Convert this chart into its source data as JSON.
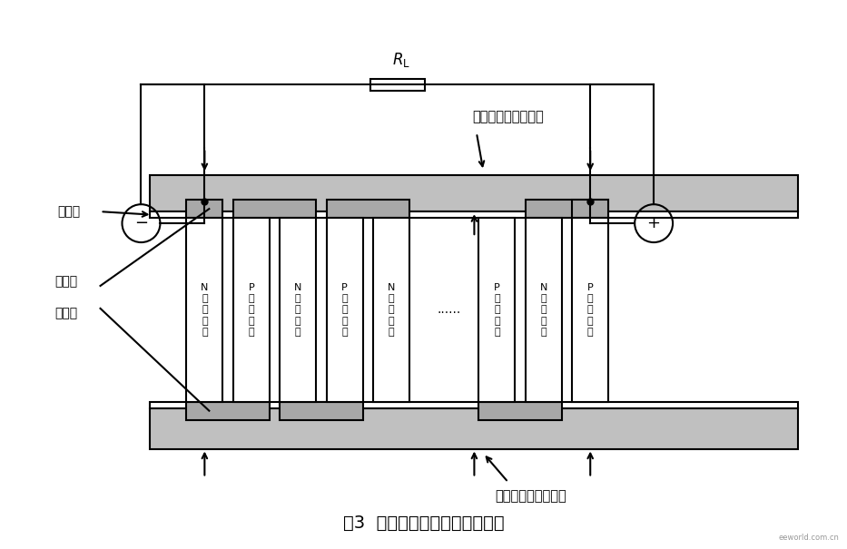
{
  "title": "图3  半导体温差电池原理示意图",
  "bg_color": "#ffffff",
  "line_color": "#000000",
  "top_plate_label": "环境接触层（冷端）",
  "bottom_plate_label": "人体接触层（热端）",
  "insulation_label": "绝缘层",
  "conductor_label1": "导电体",
  "conductor_label2": "绝缘体",
  "neg_label": "-",
  "pos_label": "+",
  "col_labels": [
    "N\n型\n半\n导\n体",
    "P\n型\n半\n导\n体",
    "N\n型\n半\n导\n体",
    "P\n型\n半\n导\n体",
    "N\n型\n半\n导\n体",
    "P\n型\n半\n导\n体",
    "N\n型\n半\n导\n体",
    "P\n型\n半\n导\n体"
  ],
  "plate_gray": "#c0c0c0",
  "pad_gray": "#a8a8a8"
}
